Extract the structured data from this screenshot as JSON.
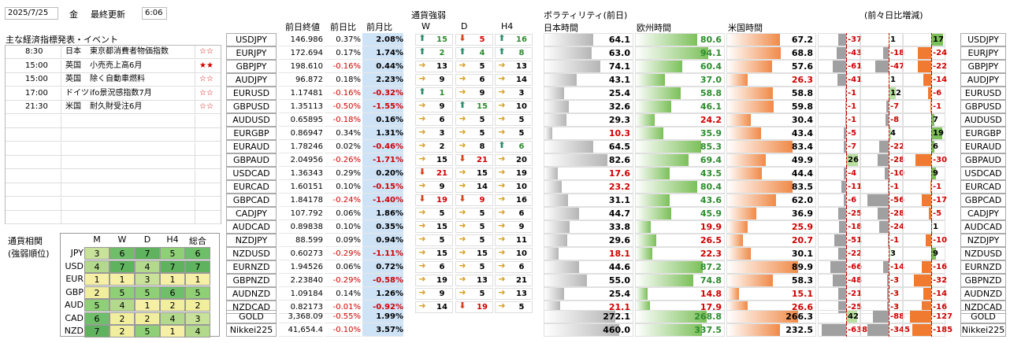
{
  "header": {
    "date": "2025/7/25",
    "weekday": "金",
    "last_update_label": "最終更新",
    "time": "6:06"
  },
  "events": {
    "title": "主な経済指標発表・イベント",
    "rows": [
      {
        "time": "8:30",
        "country": "日本",
        "name": "東京都消費者物価指数",
        "stars": "☆☆",
        "star_color": "#d00000"
      },
      {
        "time": "15:00",
        "country": "英国",
        "name": "小売売上高6月",
        "stars": "★★",
        "star_color": "#d00000"
      },
      {
        "time": "15:00",
        "country": "英国",
        "name": "除く自動車燃料",
        "stars": "☆☆",
        "star_color": "#d00000"
      },
      {
        "time": "17:00",
        "country": "ドイツ",
        "name": "ifo景況感指数7月",
        "stars": "☆☆",
        "star_color": "#d00000"
      },
      {
        "time": "21:30",
        "country": "米国",
        "name": "耐久財受注6月",
        "stars": "☆☆",
        "star_color": "#d00000"
      }
    ]
  },
  "columns": {
    "prev_close": "前日終値",
    "day_change": "前日比",
    "month_change": "前月比",
    "strength": "通貨強弱",
    "w": "W",
    "d": "D",
    "h4": "H4",
    "volatility": "ボラティリティ(前日)",
    "jp_time": "日本時間",
    "eu_time": "欧州時間",
    "us_time": "米国時間",
    "prev_prev": "(前々日比増減)"
  },
  "pairs": [
    {
      "pair": "USDJPY",
      "close": "146.986",
      "day": "0.37%",
      "month": "2.08%",
      "w": [
        "up",
        "15"
      ],
      "d": [
        "down",
        "5"
      ],
      "h4": [
        "up",
        "16"
      ],
      "jp": "64.1",
      "eu": "80.6",
      "us": "67.2",
      "c1": "-37",
      "c2": "1",
      "c3": "17",
      "v": [
        0.55,
        0.7,
        0.6
      ],
      "cv": [
        -0.3,
        0.02,
        0.45
      ]
    },
    {
      "pair": "EURJPY",
      "close": "172.694",
      "day": "0.17%",
      "month": "1.74%",
      "w": [
        "up",
        "2"
      ],
      "d": [
        "up",
        "4"
      ],
      "h4": [
        "up",
        "8"
      ],
      "jp": "63.0",
      "eu": "94.1",
      "us": "68.8",
      "c1": "-43",
      "c2": "-18",
      "c3": "-24",
      "v": [
        0.54,
        0.82,
        0.61
      ],
      "cv": [
        -0.35,
        -0.2,
        -0.5
      ]
    },
    {
      "pair": "GBPJPY",
      "close": "198.610",
      "day": "-0.16%",
      "month": "0.44%",
      "w": [
        "right",
        "13"
      ],
      "d": [
        "right",
        "5"
      ],
      "h4": [
        "right",
        "13"
      ],
      "jp": "74.1",
      "eu": "60.4",
      "us": "57.6",
      "c1": "-61",
      "c2": "-47",
      "c3": "-22",
      "v": [
        0.63,
        0.53,
        0.51
      ],
      "cv": [
        -0.5,
        -0.5,
        -0.5
      ]
    },
    {
      "pair": "AUDJPY",
      "close": "96.872",
      "day": "0.18%",
      "month": "2.23%",
      "w": [
        "right",
        "9"
      ],
      "d": [
        "right",
        "6"
      ],
      "h4": [
        "right",
        "14"
      ],
      "jp": "43.1",
      "eu": "37.0",
      "us": "26.3",
      "c1": "-41",
      "c2": "1",
      "c3": "-14",
      "v": [
        0.37,
        0.33,
        0.23
      ],
      "cv": [
        -0.33,
        0.02,
        -0.3
      ]
    },
    {
      "pair": "EURUSD",
      "close": "1.17481",
      "day": "-0.16%",
      "month": "-0.32%",
      "w": [
        "up",
        "1"
      ],
      "d": [
        "right",
        "9"
      ],
      "h4": [
        "right",
        "3"
      ],
      "jp": "25.4",
      "eu": "58.8",
      "us": "58.8",
      "c1": "-1",
      "c2": "12",
      "c3": "-6",
      "v": [
        0.22,
        0.51,
        0.52
      ],
      "cv": [
        -0.02,
        0.25,
        -0.12
      ]
    },
    {
      "pair": "GBPUSD",
      "close": "1.35113",
      "day": "-0.50%",
      "month": "-1.55%",
      "w": [
        "right",
        "9"
      ],
      "d": [
        "up",
        "15"
      ],
      "h4": [
        "right",
        "10"
      ],
      "jp": "32.6",
      "eu": "46.1",
      "us": "59.8",
      "c1": "-1",
      "c2": "-7",
      "c3": "-1",
      "v": [
        0.28,
        0.4,
        0.53
      ],
      "cv": [
        -0.02,
        -0.1,
        -0.02
      ]
    },
    {
      "pair": "AUDUSD",
      "close": "0.65895",
      "day": "-0.18%",
      "month": "0.16%",
      "w": [
        "right",
        "6"
      ],
      "d": [
        "right",
        "5"
      ],
      "h4": [
        "right",
        "5"
      ],
      "jp": "29.3",
      "eu": "24.2",
      "us": "30.4",
      "c1": "-1",
      "c2": "-8",
      "c3": "7",
      "v": [
        0.25,
        0.21,
        0.27
      ],
      "cv": [
        -0.02,
        -0.12,
        0.12
      ]
    },
    {
      "pair": "EURGBP",
      "close": "0.86947",
      "day": "0.34%",
      "month": "1.31%",
      "w": [
        "right",
        "3"
      ],
      "d": [
        "right",
        "5"
      ],
      "h4": [
        "right",
        "5"
      ],
      "jp": "10.3",
      "eu": "35.9",
      "us": "43.4",
      "c1": "-5",
      "c2": "4",
      "c3": "19",
      "v": [
        0.09,
        0.31,
        0.38
      ],
      "cv": [
        -0.1,
        0.08,
        0.4
      ]
    },
    {
      "pair": "EURAUD",
      "close": "1.78246",
      "day": "0.02%",
      "month": "-0.46%",
      "w": [
        "right",
        "2"
      ],
      "d": [
        "right",
        "8"
      ],
      "h4": [
        "up",
        "6"
      ],
      "jp": "64.5",
      "eu": "85.3",
      "us": "83.4",
      "c1": "-7",
      "c2": "-22",
      "c3": "6",
      "v": [
        0.55,
        0.74,
        0.74
      ],
      "cv": [
        -0.1,
        -0.35,
        0.12
      ]
    },
    {
      "pair": "GBPAUD",
      "close": "2.04956",
      "day": "-0.26%",
      "month": "-1.71%",
      "w": [
        "right",
        "15"
      ],
      "d": [
        "down",
        "21"
      ],
      "h4": [
        "right",
        "20"
      ],
      "jp": "82.6",
      "eu": "69.4",
      "us": "49.9",
      "c1": "26",
      "c2": "-28",
      "c3": "-30",
      "v": [
        0.71,
        0.6,
        0.44
      ],
      "cv": [
        0.45,
        -0.4,
        -0.6
      ]
    },
    {
      "pair": "USDCAD",
      "close": "1.36343",
      "day": "0.29%",
      "month": "0.20%",
      "w": [
        "down",
        "21"
      ],
      "d": [
        "right",
        "15"
      ],
      "h4": [
        "right",
        "19"
      ],
      "jp": "17.6",
      "eu": "43.5",
      "us": "44.4",
      "c1": "-4",
      "c2": "-10",
      "c3": "9",
      "v": [
        0.15,
        0.38,
        0.39
      ],
      "cv": [
        -0.08,
        -0.15,
        0.18
      ]
    },
    {
      "pair": "EURCAD",
      "close": "1.60151",
      "day": "0.10%",
      "month": "-0.15%",
      "w": [
        "right",
        "9"
      ],
      "d": [
        "right",
        "14"
      ],
      "h4": [
        "right",
        "10"
      ],
      "jp": "23.2",
      "eu": "80.4",
      "us": "83.5",
      "c1": "-11",
      "c2": "-1",
      "c3": "-1",
      "v": [
        0.2,
        0.7,
        0.74
      ],
      "cv": [
        -0.18,
        -0.02,
        -0.02
      ]
    },
    {
      "pair": "GBPCAD",
      "close": "1.84178",
      "day": "-0.24%",
      "month": "-1.40%",
      "w": [
        "down",
        "19"
      ],
      "d": [
        "down",
        "9"
      ],
      "h4": [
        "right",
        "16"
      ],
      "jp": "31.1",
      "eu": "43.6",
      "us": "62.0",
      "c1": "-6",
      "c2": "-56",
      "c3": "-17",
      "v": [
        0.27,
        0.38,
        0.55
      ],
      "cv": [
        -0.1,
        -0.8,
        -0.35
      ]
    },
    {
      "pair": "CADJPY",
      "close": "107.792",
      "day": "0.06%",
      "month": "1.86%",
      "w": [
        "right",
        "5"
      ],
      "d": [
        "right",
        "5"
      ],
      "h4": [
        "right",
        "6"
      ],
      "jp": "44.7",
      "eu": "45.9",
      "us": "36.9",
      "c1": "-25",
      "c2": "-28",
      "c3": "-5",
      "v": [
        0.39,
        0.4,
        0.33
      ],
      "cv": [
        -0.3,
        -0.4,
        -0.1
      ]
    },
    {
      "pair": "AUDCAD",
      "close": "0.89838",
      "day": "0.10%",
      "month": "0.35%",
      "w": [
        "right",
        "15"
      ],
      "d": [
        "right",
        "5"
      ],
      "h4": [
        "right",
        "9"
      ],
      "jp": "33.8",
      "eu": "19.9",
      "us": "25.9",
      "c1": "-18",
      "c2": "-24",
      "c3": "1",
      "v": [
        0.29,
        0.17,
        0.23
      ],
      "cv": [
        -0.25,
        -0.35,
        0.02
      ]
    },
    {
      "pair": "NZDJPY",
      "close": "88.599",
      "day": "0.09%",
      "month": "0.94%",
      "w": [
        "right",
        "5"
      ],
      "d": [
        "right",
        "5"
      ],
      "h4": [
        "right",
        "11"
      ],
      "jp": "29.6",
      "eu": "26.5",
      "us": "20.7",
      "c1": "-51",
      "c2": "-1",
      "c3": "-10",
      "v": [
        0.26,
        0.23,
        0.18
      ],
      "cv": [
        -0.45,
        -0.02,
        -0.2
      ]
    },
    {
      "pair": "NZDUSD",
      "close": "0.60273",
      "day": "-0.29%",
      "month": "-1.11%",
      "w": [
        "right",
        "15"
      ],
      "d": [
        "right",
        "15"
      ],
      "h4": [
        "right",
        "10"
      ],
      "jp": "18.1",
      "eu": "22.3",
      "us": "30.1",
      "c1": "-22",
      "c2": "3",
      "c3": "9",
      "v": [
        0.16,
        0.19,
        0.27
      ],
      "cv": [
        -0.3,
        0.05,
        0.18
      ]
    },
    {
      "pair": "EURNZD",
      "close": "1.94526",
      "day": "0.06%",
      "month": "0.72%",
      "w": [
        "right",
        "6"
      ],
      "d": [
        "right",
        "5"
      ],
      "h4": [
        "right",
        "6"
      ],
      "jp": "44.6",
      "eu": "87.2",
      "us": "89.9",
      "c1": "-66",
      "c2": "-14",
      "c3": "-16",
      "v": [
        0.39,
        0.76,
        0.8
      ],
      "cv": [
        -0.6,
        -0.2,
        -0.35
      ]
    },
    {
      "pair": "GBPNZD",
      "close": "2.23840",
      "day": "-0.29%",
      "month": "-0.58%",
      "w": [
        "right",
        "19"
      ],
      "d": [
        "right",
        "13"
      ],
      "h4": [
        "right",
        "21"
      ],
      "jp": "55.0",
      "eu": "74.8",
      "us": "58.3",
      "c1": "-48",
      "c2": "-3",
      "c3": "-32",
      "v": [
        0.48,
        0.65,
        0.52
      ],
      "cv": [
        -0.5,
        -0.05,
        -0.65
      ]
    },
    {
      "pair": "AUDNZD",
      "close": "1.09184",
      "day": "0.14%",
      "month": "1.26%",
      "w": [
        "right",
        "9"
      ],
      "d": [
        "right",
        "5"
      ],
      "h4": [
        "right",
        "13"
      ],
      "jp": "25.4",
      "eu": "14.8",
      "us": "15.1",
      "c1": "-21",
      "c2": "-3",
      "c3": "-14",
      "v": [
        0.22,
        0.13,
        0.13
      ],
      "cv": [
        -0.3,
        -0.05,
        -0.3
      ]
    },
    {
      "pair": "NZDCAD",
      "close": "0.82173",
      "day": "-0.01%",
      "month": "-0.92%",
      "w": [
        "right",
        "14"
      ],
      "d": [
        "down",
        "19"
      ],
      "h4": [
        "right",
        "5"
      ],
      "jp": "21.1",
      "eu": "17.9",
      "us": "26.6",
      "c1": "-25",
      "c2": "-3",
      "c3": "-16",
      "v": [
        0.18,
        0.16,
        0.23
      ],
      "cv": [
        -0.3,
        -0.05,
        -0.35
      ]
    }
  ],
  "extra": [
    {
      "pair": "GOLD",
      "close": "3,368.09",
      "day": "-0.55%",
      "month": "1.99%",
      "jp": "272.1",
      "eu": "268.8",
      "us": "266.3",
      "c1": "42",
      "c2": "-88",
      "c3": "-127",
      "v": [
        0.8,
        0.8,
        0.8
      ],
      "cv": [
        0.4,
        -0.6,
        -0.8
      ]
    },
    {
      "pair": "Nikkei225",
      "close": "41,654.4",
      "day": "-0.10%",
      "month": "3.57%",
      "jp": "460.0",
      "eu": "337.5",
      "us": "232.5",
      "c1": "-638",
      "c2": "-345",
      "c3": "-185",
      "v": [
        0.85,
        0.75,
        0.6
      ],
      "cv": [
        -0.9,
        -0.8,
        -0.7
      ]
    }
  ],
  "correlation": {
    "title": "通貨相関",
    "subtitle": "(強弱順位)",
    "headers": [
      "M",
      "W",
      "D",
      "H4",
      "総合"
    ],
    "rows": [
      {
        "cur": "JPY",
        "vals": [
          "3",
          "6",
          "7",
          "5",
          "6"
        ]
      },
      {
        "cur": "USD",
        "vals": [
          "4",
          "7",
          "4",
          "7",
          "7"
        ]
      },
      {
        "cur": "EUR",
        "vals": [
          "1",
          "1",
          "3",
          "1",
          "1"
        ]
      },
      {
        "cur": "GBP",
        "vals": [
          "2",
          "5",
          "5",
          "6",
          "5"
        ]
      },
      {
        "cur": "AUD",
        "vals": [
          "5",
          "4",
          "1",
          "2",
          "2"
        ]
      },
      {
        "cur": "CAD",
        "vals": [
          "6",
          "2",
          "2",
          "4",
          "3"
        ]
      },
      {
        "cur": "NZD",
        "vals": [
          "7",
          "2",
          "5",
          "1",
          "4"
        ]
      }
    ]
  },
  "colors": {
    "pos": "#000000",
    "neg": "#d00000",
    "green": "#2e8b2e",
    "orange": "#f07a30",
    "gray": "#a8a8a8",
    "month_bg": "#cfe3f7"
  }
}
